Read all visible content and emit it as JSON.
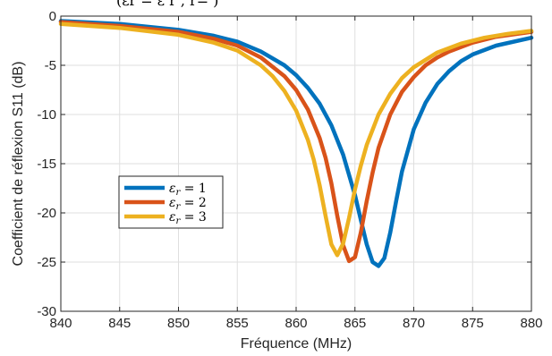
{
  "page_top_fragment": "(εr = ε r , r= )",
  "chart_data": {
    "type": "line",
    "xlabel": "Fréquence (MHz)",
    "ylabel": "Coefficient de réflexion S11 (dB)",
    "xlim": [
      840,
      880
    ],
    "ylim": [
      -30,
      0
    ],
    "xticks": [
      840,
      845,
      850,
      855,
      860,
      865,
      870,
      875,
      880
    ],
    "yticks": [
      0,
      -5,
      -10,
      -15,
      -20,
      -25,
      -30
    ],
    "grid": true,
    "legend_position": "middle-left",
    "series": [
      {
        "name": "εr = 1",
        "color": "#0072BD",
        "x": [
          840,
          845,
          850,
          853,
          855,
          857,
          859,
          860,
          861,
          862,
          863,
          864,
          865,
          865.5,
          866,
          866.5,
          867,
          867.5,
          868,
          868.5,
          869,
          870,
          871,
          872,
          873,
          874,
          875,
          877,
          880
        ],
        "y": [
          -0.5,
          -0.8,
          -1.4,
          -2.0,
          -2.6,
          -3.6,
          -5.0,
          -6.0,
          -7.3,
          -8.9,
          -11.1,
          -14.1,
          -18.2,
          -20.7,
          -23.2,
          -25.0,
          -25.4,
          -24.6,
          -22.0,
          -18.8,
          -15.8,
          -11.5,
          -8.8,
          -6.9,
          -5.6,
          -4.6,
          -3.9,
          -3.0,
          -2.2
        ]
      },
      {
        "name": "εr = 2",
        "color": "#D95319",
        "x": [
          840,
          845,
          850,
          853,
          855,
          857,
          859,
          860,
          861,
          862,
          862.5,
          863,
          863.5,
          864,
          864.5,
          865,
          865.5,
          866,
          866.5,
          867,
          868,
          869,
          870,
          871,
          872,
          873,
          875,
          877,
          880
        ],
        "y": [
          -0.6,
          -1.0,
          -1.6,
          -2.3,
          -3.0,
          -4.2,
          -6.1,
          -7.5,
          -9.5,
          -12.4,
          -14.4,
          -17.0,
          -20.3,
          -23.3,
          -24.9,
          -24.5,
          -22.0,
          -18.8,
          -15.9,
          -13.4,
          -10.0,
          -7.7,
          -6.2,
          -5.0,
          -4.2,
          -3.6,
          -2.7,
          -2.1,
          -1.6
        ]
      },
      {
        "name": "εr = 3",
        "color": "#EDB120",
        "x": [
          840,
          845,
          850,
          853,
          855,
          857,
          858,
          859,
          860,
          861,
          861.5,
          862,
          862.5,
          863,
          863.5,
          864,
          864.5,
          865,
          865.5,
          866,
          867,
          868,
          869,
          870,
          872,
          874,
          876,
          878,
          880
        ],
        "y": [
          -0.8,
          -1.2,
          -1.9,
          -2.7,
          -3.5,
          -5.0,
          -6.1,
          -7.6,
          -9.6,
          -12.6,
          -14.6,
          -17.2,
          -20.3,
          -23.2,
          -24.3,
          -23.1,
          -20.5,
          -17.6,
          -15.2,
          -13.1,
          -10.0,
          -7.9,
          -6.3,
          -5.2,
          -3.7,
          -2.8,
          -2.2,
          -1.8,
          -1.5
        ]
      }
    ]
  }
}
